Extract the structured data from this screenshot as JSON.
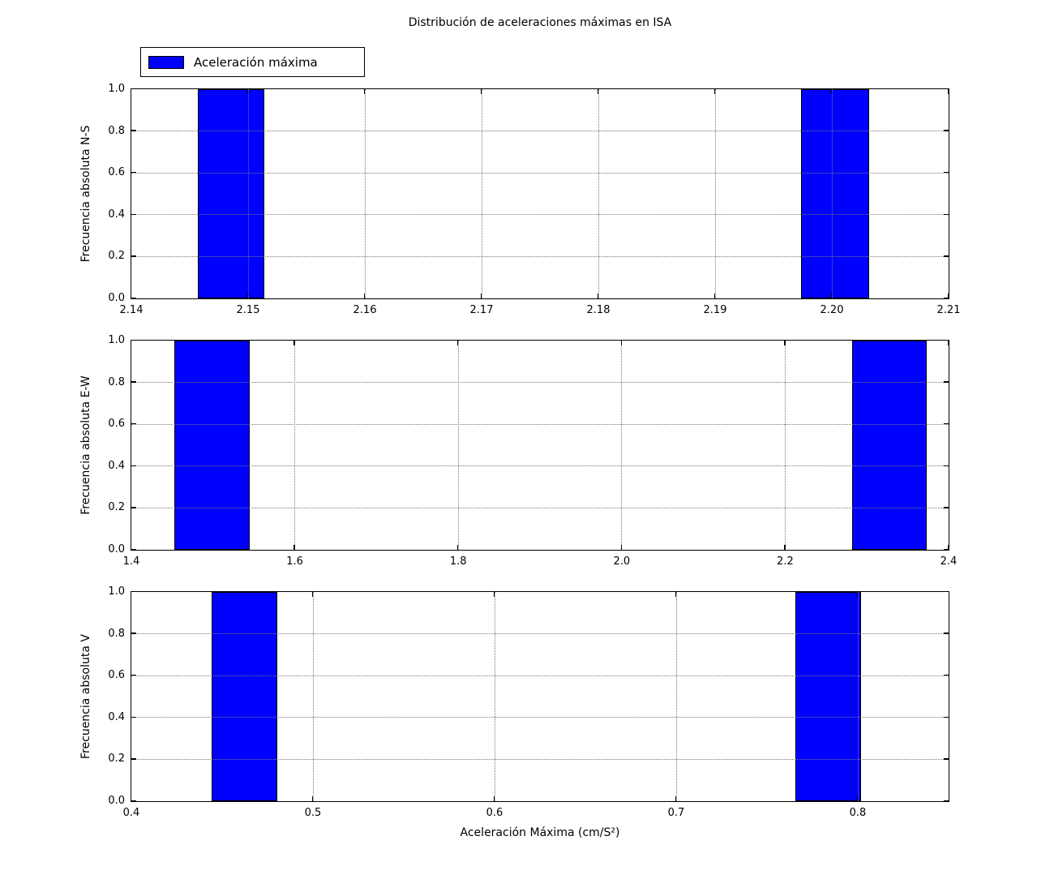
{
  "figure": {
    "title": "Distribución de aceleraciones máximas en ISA",
    "xlabel": "Aceleración Máxima (cm/S²)",
    "legend": {
      "label": "Aceleración máxima"
    },
    "colors": {
      "bar_fill": "#0000ff",
      "bar_edge": "#000000",
      "axes": "#000000",
      "grid": "#777777",
      "background": "#ffffff"
    }
  },
  "chart_data": [
    {
      "type": "bar",
      "subtype": "histogram",
      "ylabel": "Frecuencia absoluta N-S",
      "xlim": [
        2.14,
        2.21
      ],
      "ylim": [
        0.0,
        1.0
      ],
      "grid": true,
      "legend_position": "above-upper-left",
      "xticks": [
        {
          "v": 2.14,
          "label": "2.14"
        },
        {
          "v": 2.15,
          "label": "2.15"
        },
        {
          "v": 2.16,
          "label": "2.16"
        },
        {
          "v": 2.17,
          "label": "2.17"
        },
        {
          "v": 2.18,
          "label": "2.18"
        },
        {
          "v": 2.19,
          "label": "2.19"
        },
        {
          "v": 2.2,
          "label": "2.20"
        },
        {
          "v": 2.21,
          "label": "2.21"
        }
      ],
      "yticks": [
        {
          "v": 0.0,
          "label": "0.0"
        },
        {
          "v": 0.2,
          "label": "0.2"
        },
        {
          "v": 0.4,
          "label": "0.4"
        },
        {
          "v": 0.6,
          "label": "0.6"
        },
        {
          "v": 0.8,
          "label": "0.8"
        },
        {
          "v": 1.0,
          "label": "1.0"
        }
      ],
      "bars": [
        {
          "x0": 2.1457,
          "x1": 2.1514,
          "freq": 1
        },
        {
          "x0": 2.1974,
          "x1": 2.2032,
          "freq": 1
        }
      ]
    },
    {
      "type": "bar",
      "subtype": "histogram",
      "ylabel": "Frecuencia absoluta E-W",
      "xlim": [
        1.4,
        2.4
      ],
      "ylim": [
        0.0,
        1.0
      ],
      "grid": true,
      "xticks": [
        {
          "v": 1.4,
          "label": "1.4"
        },
        {
          "v": 1.6,
          "label": "1.6"
        },
        {
          "v": 1.8,
          "label": "1.8"
        },
        {
          "v": 2.0,
          "label": "2.0"
        },
        {
          "v": 2.2,
          "label": "2.2"
        },
        {
          "v": 2.4,
          "label": "2.4"
        }
      ],
      "yticks": [
        {
          "v": 0.0,
          "label": "0.0"
        },
        {
          "v": 0.2,
          "label": "0.2"
        },
        {
          "v": 0.4,
          "label": "0.4"
        },
        {
          "v": 0.6,
          "label": "0.6"
        },
        {
          "v": 0.8,
          "label": "0.8"
        },
        {
          "v": 1.0,
          "label": "1.0"
        }
      ],
      "bars": [
        {
          "x0": 1.453,
          "x1": 1.545,
          "freq": 1
        },
        {
          "x0": 2.282,
          "x1": 2.374,
          "freq": 1
        }
      ]
    },
    {
      "type": "bar",
      "subtype": "histogram",
      "ylabel": "Frecuencia absoluta V",
      "xlim": [
        0.4,
        0.85
      ],
      "ylim": [
        0.0,
        1.0
      ],
      "grid": true,
      "xticks": [
        {
          "v": 0.4,
          "label": "0.4"
        },
        {
          "v": 0.5,
          "label": "0.5"
        },
        {
          "v": 0.6,
          "label": "0.6"
        },
        {
          "v": 0.7,
          "label": "0.7"
        },
        {
          "v": 0.8,
          "label": "0.8"
        }
      ],
      "yticks": [
        {
          "v": 0.0,
          "label": "0.0"
        },
        {
          "v": 0.2,
          "label": "0.2"
        },
        {
          "v": 0.4,
          "label": "0.4"
        },
        {
          "v": 0.6,
          "label": "0.6"
        },
        {
          "v": 0.8,
          "label": "0.8"
        },
        {
          "v": 1.0,
          "label": "1.0"
        }
      ],
      "bars": [
        {
          "x0": 0.4446,
          "x1": 0.4808,
          "freq": 1
        },
        {
          "x0": 0.766,
          "x1": 0.802,
          "freq": 1
        }
      ]
    }
  ]
}
